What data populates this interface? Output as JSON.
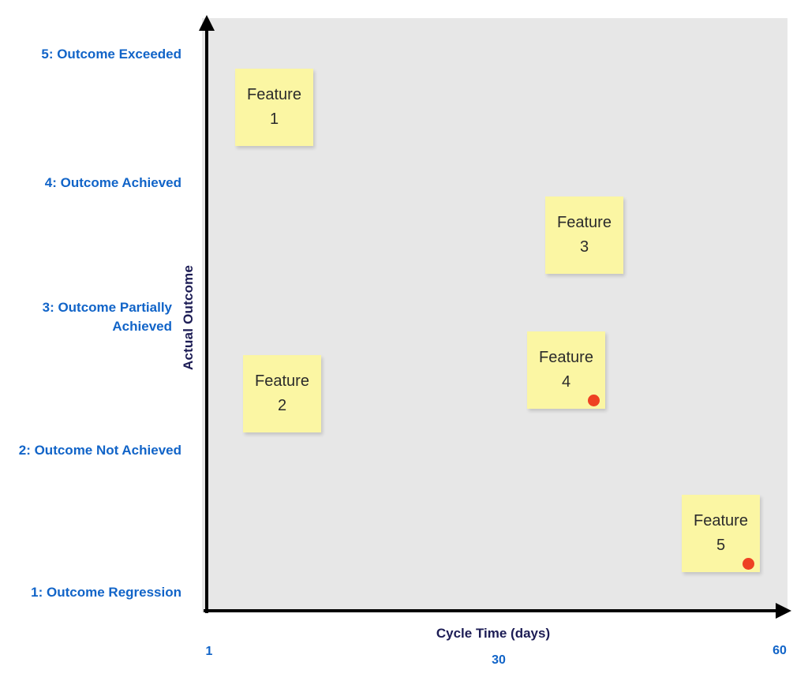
{
  "y_axis": {
    "title": "Actual Outcome",
    "tick_labels": [
      "5: Outcome Exceeded",
      "4: Outcome Achieved",
      "3: Outcome Partially\nAchieved",
      "2: Outcome Not Achieved",
      "1: Outcome Regression"
    ]
  },
  "x_axis": {
    "title": "Cycle Time (days)",
    "ticks": [
      "1",
      "30",
      "60"
    ]
  },
  "notes": [
    {
      "line1": "Feature",
      "line2": "1",
      "red_dot": false
    },
    {
      "line1": "Feature",
      "line2": "2",
      "red_dot": false
    },
    {
      "line1": "Feature",
      "line2": "3",
      "red_dot": false
    },
    {
      "line1": "Feature",
      "line2": "4",
      "red_dot": true
    },
    {
      "line1": "Feature",
      "line2": "5",
      "red_dot": true
    }
  ],
  "colors": {
    "label_blue": "#1164c8",
    "axis_navy": "#1d1d55",
    "note_yellow": "#fbf6a3",
    "note_text": "#2b2b2b",
    "plot_gray": "#e7e7e7",
    "dot_red": "#ee4123",
    "axis_black": "#000000"
  },
  "chart_data": {
    "type": "scatter",
    "title": "",
    "xlabel": "Cycle Time (days)",
    "ylabel": "Actual Outcome",
    "xlim": [
      1,
      60
    ],
    "x_ticks": [
      1,
      30,
      60
    ],
    "ylim": [
      0.5,
      5.5
    ],
    "y_tick_labels": [
      "1: Outcome Regression",
      "2: Outcome Not Achieved",
      "3: Outcome Partially Achieved",
      "4: Outcome Achieved",
      "5: Outcome Exceeded"
    ],
    "grid": false,
    "legend": false,
    "marker_style": "sticky-note",
    "points": [
      {
        "label": "Feature 1",
        "cycle_time_days": 8,
        "actual_outcome": 4.6,
        "red_dot": false
      },
      {
        "label": "Feature 2",
        "cycle_time_days": 9,
        "actual_outcome": 2.4,
        "red_dot": false
      },
      {
        "label": "Feature 3",
        "cycle_time_days": 39,
        "actual_outcome": 3.6,
        "red_dot": false
      },
      {
        "label": "Feature 4",
        "cycle_time_days": 38,
        "actual_outcome": 2.6,
        "red_dot": true
      },
      {
        "label": "Feature 5",
        "cycle_time_days": 53,
        "actual_outcome": 1.4,
        "red_dot": true
      }
    ]
  }
}
